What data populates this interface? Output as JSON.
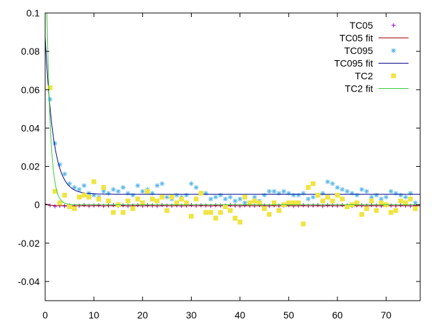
{
  "chart_data": {
    "type": "scatter",
    "title": "",
    "xlabel": "",
    "ylabel": "",
    "xlim": [
      0,
      77
    ],
    "ylim": [
      -0.05,
      0.1
    ],
    "grid": false,
    "legend_position": "top-right",
    "x_ticks": [
      0,
      10,
      20,
      30,
      40,
      50,
      60,
      70
    ],
    "x_tick_labels": [
      "0",
      "10",
      "20",
      "30",
      "40",
      "50",
      "60",
      "70"
    ],
    "y_ticks": [
      -0.04,
      -0.02,
      0,
      0.02,
      0.04,
      0.06,
      0.08,
      0.1
    ],
    "y_tick_labels": [
      "-0.04",
      "-0.02",
      "0",
      "0.02",
      "0.04",
      "0.06",
      "0.08",
      "0.1"
    ],
    "series": [
      {
        "name": "TC05",
        "kind": "points",
        "marker": "plus",
        "color": "#9400d3",
        "x": [
          0,
          1,
          2,
          3,
          4,
          5,
          6,
          7,
          8,
          9,
          10,
          11,
          12,
          13,
          14,
          15,
          16,
          17,
          18,
          19,
          20,
          21,
          22,
          23,
          24,
          25,
          26,
          27,
          28,
          29,
          30,
          31,
          32,
          33,
          34,
          35,
          36,
          37,
          38,
          39,
          40,
          41,
          42,
          43,
          44,
          45,
          46,
          47,
          48,
          49,
          50,
          51,
          52,
          53,
          54,
          55,
          56,
          57,
          58,
          59,
          60,
          61,
          62,
          63,
          64,
          65,
          66,
          67,
          68,
          69,
          70,
          71,
          72,
          73,
          74,
          75,
          76,
          77
        ],
        "y": [
          0.0003,
          -0.0003,
          -0.0008,
          -0.0005,
          -0.0007,
          -0.0004,
          -0.0006,
          -0.0005,
          -0.0002,
          -0.0006,
          -0.0004,
          -0.0003,
          -0.0006,
          -0.0004,
          -0.0002,
          -0.0005,
          -0.0003,
          -0.0006,
          -0.0004,
          -0.0002,
          -0.0005,
          -0.0003,
          -0.0004,
          -0.0006,
          -0.0002,
          -0.0004,
          -0.0005,
          -0.0003,
          -0.0006,
          -0.0004,
          -0.0002,
          -0.0005,
          -0.0003,
          -0.0004,
          -0.0006,
          -0.0003,
          -0.0004,
          -0.0005,
          -0.0002,
          -0.0004,
          -0.0006,
          -0.0003,
          -0.0004,
          -0.0005,
          -0.0002,
          -0.0004,
          -0.0006,
          -0.0003,
          -0.0005,
          -0.0004,
          -0.0002,
          -0.0006,
          -0.0004,
          -0.0003,
          -0.0005,
          -0.0004,
          -0.0002,
          -0.0006,
          -0.0003,
          -0.0004,
          -0.0005,
          -0.0002,
          -0.0004,
          -0.0006,
          -0.0003,
          -0.0004,
          -0.0005,
          -0.0002,
          -0.0004,
          -0.0006,
          -0.0003,
          -0.0004,
          -0.0005,
          -0.0002,
          -0.0004,
          -0.0006,
          -0.0003,
          -0.0004
        ]
      },
      {
        "name": "TC05 fit",
        "kind": "line",
        "color": "#a00000",
        "x": [
          0,
          1,
          2,
          5,
          10,
          77
        ],
        "y": [
          0.0004,
          -0.0002,
          -0.0004,
          -0.0005,
          -0.0005,
          -0.0005
        ]
      },
      {
        "name": "TC095",
        "kind": "points",
        "marker": "star",
        "color": "#56b4e9",
        "x": [
          1,
          2,
          3,
          4,
          5,
          6,
          7,
          8,
          9,
          10,
          11,
          12,
          13,
          14,
          15,
          16,
          17,
          18,
          19,
          20,
          21,
          22,
          23,
          24,
          25,
          26,
          27,
          28,
          29,
          30,
          31,
          32,
          33,
          34,
          35,
          36,
          37,
          38,
          39,
          40,
          41,
          42,
          43,
          44,
          45,
          46,
          47,
          48,
          49,
          50,
          51,
          52,
          53,
          54,
          55,
          56,
          57,
          58,
          59,
          60,
          61,
          62,
          63,
          64,
          65,
          66,
          67,
          68,
          69,
          70,
          71,
          72,
          73,
          74,
          75,
          76
        ],
        "y": [
          0.055,
          0.032,
          0.021,
          0.016,
          0.011,
          0.009,
          0.008,
          0.01,
          0.006,
          0.005,
          0.004,
          0.007,
          0.006,
          0.008,
          0.007,
          0.009,
          0.006,
          0.005,
          0.01,
          0.007,
          0.008,
          0.006,
          0.01,
          0.011,
          0.004,
          0.003,
          0.005,
          0.004,
          0.005,
          0.011,
          0.009,
          0.006,
          0.006,
          0.003,
          0.004,
          0.005,
          0.003,
          0.004,
          0.002,
          0.003,
          0.001,
          0.001,
          0.004,
          0.002,
          0.005,
          0.007,
          0.007,
          0.006,
          0.007,
          0.006,
          0.005,
          0.005,
          0.006,
          0.003,
          0.004,
          0.005,
          0.006,
          0.012,
          0.011,
          0.009,
          0.008,
          0.007,
          0.006,
          0.005,
          0.008,
          0.007,
          0.004,
          0.005,
          0.003,
          0.004,
          0.007,
          0.006,
          0.005,
          0.004,
          0.006,
          0.001
        ]
      },
      {
        "name": "TC095 fit",
        "kind": "function",
        "function": "exp_decay",
        "color": "#00008b",
        "params": {
          "a": 0.082,
          "k": 0.6,
          "c": 0.0055
        },
        "x_range": [
          0,
          77
        ]
      },
      {
        "name": "TC2",
        "kind": "points",
        "marker": "square",
        "color": "#f0e442",
        "x": [
          1,
          2,
          3,
          4,
          5,
          6,
          7,
          8,
          9,
          10,
          11,
          12,
          13,
          14,
          15,
          16,
          17,
          18,
          19,
          20,
          21,
          22,
          23,
          24,
          25,
          26,
          27,
          28,
          29,
          30,
          31,
          32,
          33,
          34,
          35,
          36,
          37,
          38,
          39,
          40,
          41,
          42,
          43,
          44,
          45,
          46,
          47,
          48,
          49,
          50,
          51,
          52,
          53,
          54,
          55,
          56,
          57,
          58,
          59,
          60,
          61,
          62,
          63,
          64,
          65,
          66,
          67,
          68,
          69,
          70,
          71,
          72,
          73,
          74,
          75,
          76
        ],
        "y": [
          0.061,
          0.007,
          0.001,
          0.005,
          -0.001,
          -0.002,
          0.004,
          0.005,
          0.004,
          0.012,
          0.003,
          0.009,
          0.002,
          -0.004,
          0.0,
          -0.004,
          0.002,
          -0.002,
          0.003,
          0.001,
          0.007,
          0.003,
          0.002,
          0.004,
          -0.003,
          0.004,
          0.001,
          0.003,
          0.001,
          -0.006,
          0.003,
          0.006,
          -0.004,
          -0.004,
          -0.007,
          -0.004,
          -0.001,
          -0.003,
          -0.007,
          -0.009,
          0.004,
          0.001,
          0.002,
          0.001,
          -0.002,
          -0.005,
          0.001,
          -0.003,
          0.0,
          0.001,
          0.001,
          0.001,
          -0.01,
          0.009,
          0.011,
          0.005,
          0.002,
          0.004,
          0.002,
          0.005,
          0.003,
          -0.001,
          0.0,
          0.001,
          -0.005,
          -0.002,
          0.002,
          -0.003,
          0.001,
          0.0,
          -0.004,
          -0.003,
          0.002,
          0.001,
          0.003,
          -0.002
        ]
      },
      {
        "name": "TC2 fit",
        "kind": "function",
        "function": "exp_decay",
        "color": "#33cc33",
        "params": {
          "a": 0.16,
          "k": 1.3,
          "c": 0.0
        },
        "x_range": [
          0,
          77
        ]
      }
    ]
  }
}
